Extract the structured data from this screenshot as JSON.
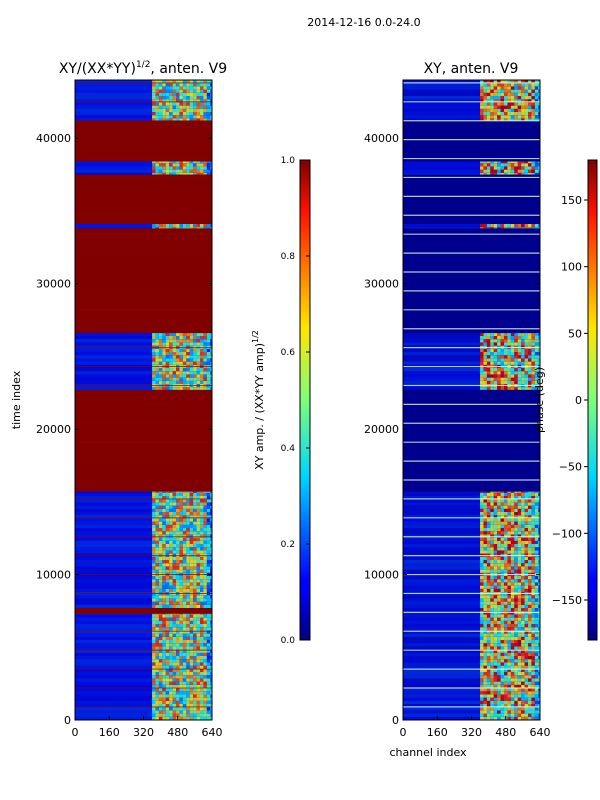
{
  "figure": {
    "suptitle": "2014-12-16 0.0-24.0"
  },
  "chart_data": [
    {
      "type": "heatmap",
      "title_main": "XY/(XX*YY)",
      "title_sup": "1/2",
      "title_tail": ", anten. V9",
      "xlabel": "",
      "ylabel": "time index",
      "xlim": [
        0,
        640
      ],
      "ylim": [
        0,
        44000
      ],
      "xticks": [
        0,
        160,
        320,
        480,
        640
      ],
      "yticks": [
        0,
        10000,
        20000,
        30000,
        40000
      ],
      "colormap": "jet",
      "saturated_bands": [
        [
          7300,
          7700
        ],
        [
          15700,
          22700
        ],
        [
          26600,
          33800
        ],
        [
          34100,
          37500
        ],
        [
          38400,
          41200
        ]
      ],
      "active_channel_range": [
        400,
        640
      ],
      "colorbar": {
        "label_main": "XY amp. / (XX*YY amp)",
        "label_sup": "1/2",
        "range": [
          0.0,
          1.0
        ],
        "ticks": [
          "0.0",
          "0.2",
          "0.4",
          "0.6",
          "0.8",
          "1.0"
        ]
      }
    },
    {
      "type": "heatmap",
      "title": "XY, anten. V9",
      "xlabel": "channel index",
      "ylabel": "",
      "xlim": [
        0,
        640
      ],
      "ylim": [
        0,
        44000
      ],
      "xticks": [
        0,
        160,
        320,
        480,
        640
      ],
      "yticks": [
        0,
        10000,
        20000,
        30000,
        40000
      ],
      "colormap": "jet",
      "flagged_bands": [
        [
          15700,
          22700
        ],
        [
          26600,
          33800
        ],
        [
          34100,
          37500
        ],
        [
          38400,
          41200
        ]
      ],
      "active_channel_range": [
        400,
        640
      ],
      "colorbar": {
        "label": "phase (deg)",
        "range": [
          -180,
          180
        ],
        "ticks": [
          "150",
          "100",
          "50",
          "0",
          "−50",
          "−100",
          "−150"
        ]
      }
    }
  ]
}
